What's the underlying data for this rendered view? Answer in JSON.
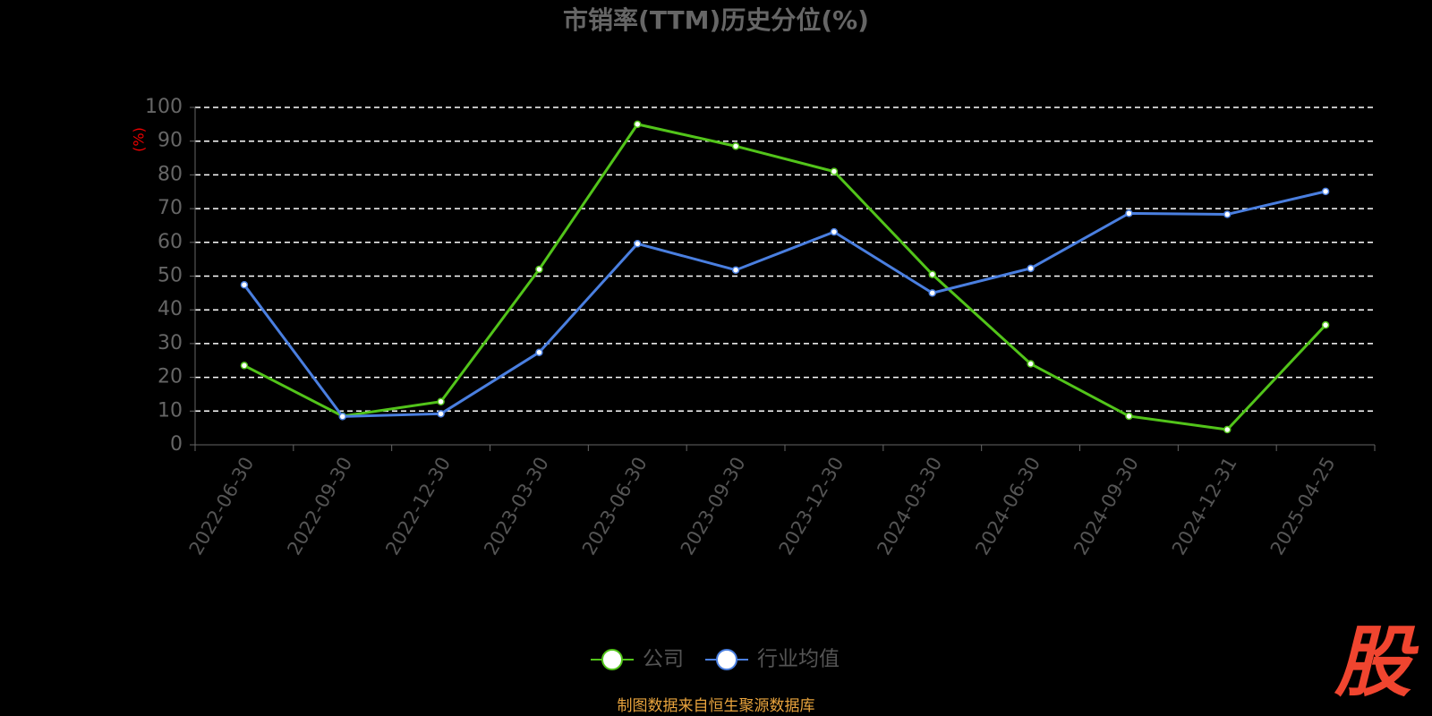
{
  "chart_data": {
    "type": "line",
    "title": "市销率(TTM)历史分位(%)",
    "y_axis_label": "(%)",
    "categories": [
      "2022-06-30",
      "2022-09-30",
      "2022-12-30",
      "2023-03-30",
      "2023-06-30",
      "2023-09-30",
      "2023-12-30",
      "2024-03-30",
      "2024-06-30",
      "2024-09-30",
      "2024-12-31",
      "2025-04-25"
    ],
    "series": [
      {
        "name": "公司",
        "color": "#52c41a",
        "values": [
          23.5,
          8.5,
          12.8,
          52,
          95,
          88.5,
          81,
          50.5,
          24,
          8.5,
          4.5,
          35.5
        ]
      },
      {
        "name": "行业均值",
        "color": "#4a7fe0",
        "values": [
          47.4,
          8.4,
          9.2,
          27.4,
          59.6,
          51.8,
          63.1,
          45,
          52.3,
          68.6,
          68.3,
          75.1
        ]
      }
    ],
    "ylim": [
      0,
      100
    ],
    "yticks": [
      0,
      10,
      20,
      30,
      40,
      50,
      60,
      70,
      80,
      90,
      100
    ],
    "grid": true,
    "legend": "bottom",
    "source": "制图数据来自恒生聚源数据库",
    "watermark": "股"
  }
}
